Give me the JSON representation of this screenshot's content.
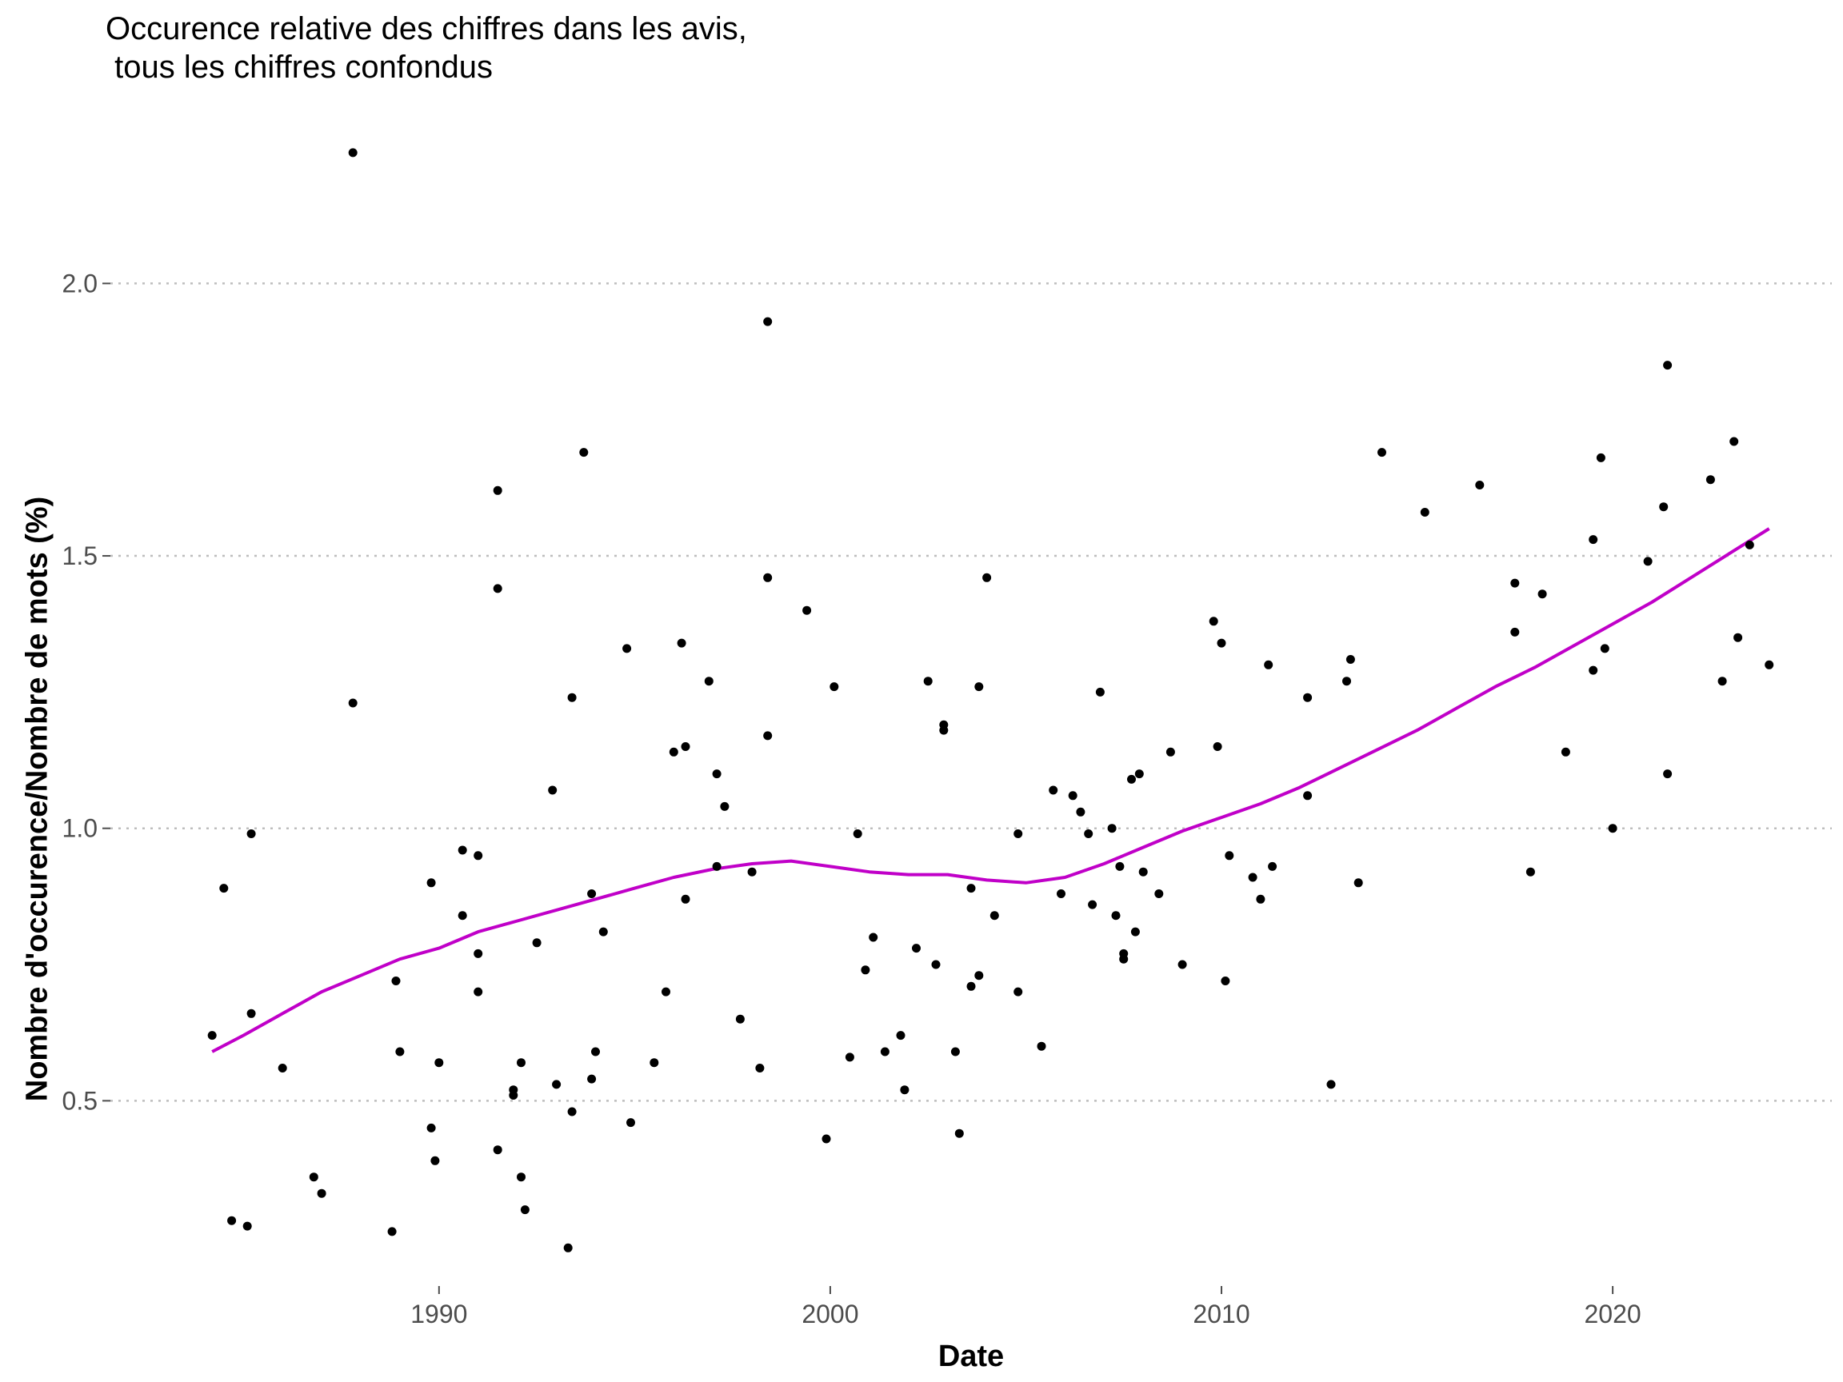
{
  "chart_data": {
    "type": "scatter",
    "title": "Occurence relative des chiffres dans les avis,\n tous les chiffres confondus",
    "xlabel": "Date",
    "ylabel": "Nombre d'occurence/Nombre de mots (%)",
    "xlim": [
      1981.6,
      2025.6
    ],
    "ylim": [
      0.16,
      2.3
    ],
    "x_ticks": [
      1990,
      2000,
      2010,
      2020
    ],
    "y_ticks": [
      0.5,
      1.0,
      1.5,
      2.0
    ],
    "x_tick_labels": [
      "1990",
      "2000",
      "2010",
      "2020"
    ],
    "y_tick_labels": [
      "0.5",
      "1.0",
      "1.5",
      "2.0"
    ],
    "grid": "horizontal major, dotted",
    "legend": "none",
    "colors": {
      "points": "#000000",
      "trend": "#C000C8",
      "grid": "#bdbdbd",
      "tick_text": "#4d4d4d"
    },
    "series": [
      {
        "type": "scatter",
        "x": [
          1984.2,
          1984.5,
          1984.7,
          1985.1,
          1985.2,
          1985.2,
          1986.0,
          1986.8,
          1987.0,
          1987.8,
          1987.8,
          1988.8,
          1988.9,
          1989.0,
          1989.8,
          1989.8,
          1989.9,
          1990.0,
          1990.6,
          1990.6,
          1991.0,
          1991.0,
          1991.0,
          1991.5,
          1991.5,
          1991.5,
          1991.9,
          1991.9,
          1992.1,
          1992.1,
          1992.2,
          1992.5,
          1992.9,
          1993.0,
          1993.3,
          1993.4,
          1993.4,
          1993.7,
          1993.9,
          1993.9,
          1994.0,
          1994.2,
          1994.8,
          1994.9,
          1995.5,
          1995.8,
          1996.0,
          1996.2,
          1996.3,
          1996.3,
          1996.9,
          1997.1,
          1997.1,
          1997.3,
          1997.7,
          1998.0,
          1998.2,
          1998.4,
          1998.4,
          1998.4,
          1999.4,
          1999.9,
          2000.1,
          2000.5,
          2000.7,
          2000.9,
          2001.1,
          2001.4,
          2001.8,
          2001.9,
          2002.2,
          2002.5,
          2002.7,
          2002.9,
          2002.9,
          2003.2,
          2003.3,
          2003.6,
          2003.6,
          2003.8,
          2003.8,
          2004.0,
          2004.2,
          2004.8,
          2004.8,
          2005.4,
          2005.7,
          2005.9,
          2006.2,
          2006.4,
          2006.6,
          2006.7,
          2006.9,
          2007.2,
          2007.3,
          2007.4,
          2007.5,
          2007.5,
          2007.7,
          2007.8,
          2007.9,
          2008.0,
          2008.4,
          2008.7,
          2009.0,
          2009.8,
          2009.9,
          2010.0,
          2010.1,
          2010.2,
          2010.8,
          2011.0,
          2011.2,
          2011.3,
          2012.2,
          2012.2,
          2012.8,
          2013.2,
          2013.3,
          2013.5,
          2014.1,
          2015.2,
          2016.6,
          2017.5,
          2017.5,
          2017.9,
          2018.2,
          2018.8,
          2019.5,
          2019.5,
          2019.7,
          2019.8,
          2020.0,
          2020.9,
          2021.3,
          2021.4,
          2021.4,
          2022.5,
          2022.8,
          2023.1,
          2023.2,
          2023.5,
          2024.0
        ],
        "y": [
          0.62,
          0.89,
          0.28,
          0.27,
          0.66,
          0.99,
          0.56,
          0.36,
          0.33,
          2.24,
          1.23,
          0.26,
          0.72,
          0.59,
          0.45,
          0.9,
          0.39,
          0.57,
          0.96,
          0.84,
          0.95,
          0.7,
          0.77,
          1.62,
          1.44,
          0.41,
          0.52,
          0.51,
          0.57,
          0.36,
          0.3,
          0.79,
          1.07,
          0.53,
          0.23,
          0.48,
          1.24,
          1.69,
          0.88,
          0.54,
          0.59,
          0.81,
          1.33,
          0.46,
          0.57,
          0.7,
          1.14,
          1.34,
          1.15,
          0.87,
          1.27,
          1.1,
          0.93,
          1.04,
          0.65,
          0.92,
          0.56,
          1.46,
          1.93,
          1.17,
          1.4,
          0.43,
          1.26,
          0.58,
          0.99,
          0.74,
          0.8,
          0.59,
          0.62,
          0.52,
          0.78,
          1.27,
          0.75,
          1.19,
          1.18,
          0.59,
          0.44,
          0.71,
          0.89,
          1.26,
          0.73,
          1.46,
          0.84,
          0.7,
          0.99,
          0.6,
          1.07,
          0.88,
          1.06,
          1.03,
          0.99,
          0.86,
          1.25,
          1.0,
          0.84,
          0.93,
          0.76,
          0.77,
          1.09,
          0.81,
          1.1,
          0.92,
          0.88,
          1.14,
          0.75,
          1.38,
          1.15,
          1.34,
          0.72,
          0.95,
          0.91,
          0.87,
          1.3,
          0.93,
          1.24,
          1.06,
          0.53,
          1.27,
          1.31,
          0.9,
          1.69,
          1.58,
          1.63,
          1.45,
          1.36,
          0.92,
          1.43,
          1.14,
          1.53,
          1.29,
          1.68,
          1.33,
          1.0,
          1.49,
          1.59,
          1.85,
          1.1,
          1.64,
          1.27,
          1.71,
          1.35,
          1.52,
          1.3
        ]
      },
      {
        "type": "line",
        "name": "",
        "x": [
          1984.2,
          1985,
          1986,
          1987,
          1988,
          1989,
          1990,
          1991,
          1992,
          1993,
          1994,
          1995,
          1996,
          1997,
          1998,
          1999,
          2000,
          2001,
          2002,
          2003,
          2004,
          2005,
          2006,
          2007,
          2008,
          2009,
          2010,
          2011,
          2012,
          2013,
          2014,
          2015,
          2016,
          2017,
          2018,
          2019,
          2020,
          2021,
          2022,
          2023,
          2024
        ],
        "y": [
          0.59,
          0.62,
          0.66,
          0.7,
          0.73,
          0.76,
          0.78,
          0.81,
          0.83,
          0.85,
          0.87,
          0.89,
          0.91,
          0.925,
          0.935,
          0.94,
          0.93,
          0.92,
          0.915,
          0.915,
          0.905,
          0.9,
          0.91,
          0.935,
          0.965,
          0.995,
          1.02,
          1.045,
          1.075,
          1.11,
          1.145,
          1.18,
          1.22,
          1.26,
          1.295,
          1.335,
          1.375,
          1.415,
          1.46,
          1.505,
          1.55
        ]
      }
    ]
  }
}
